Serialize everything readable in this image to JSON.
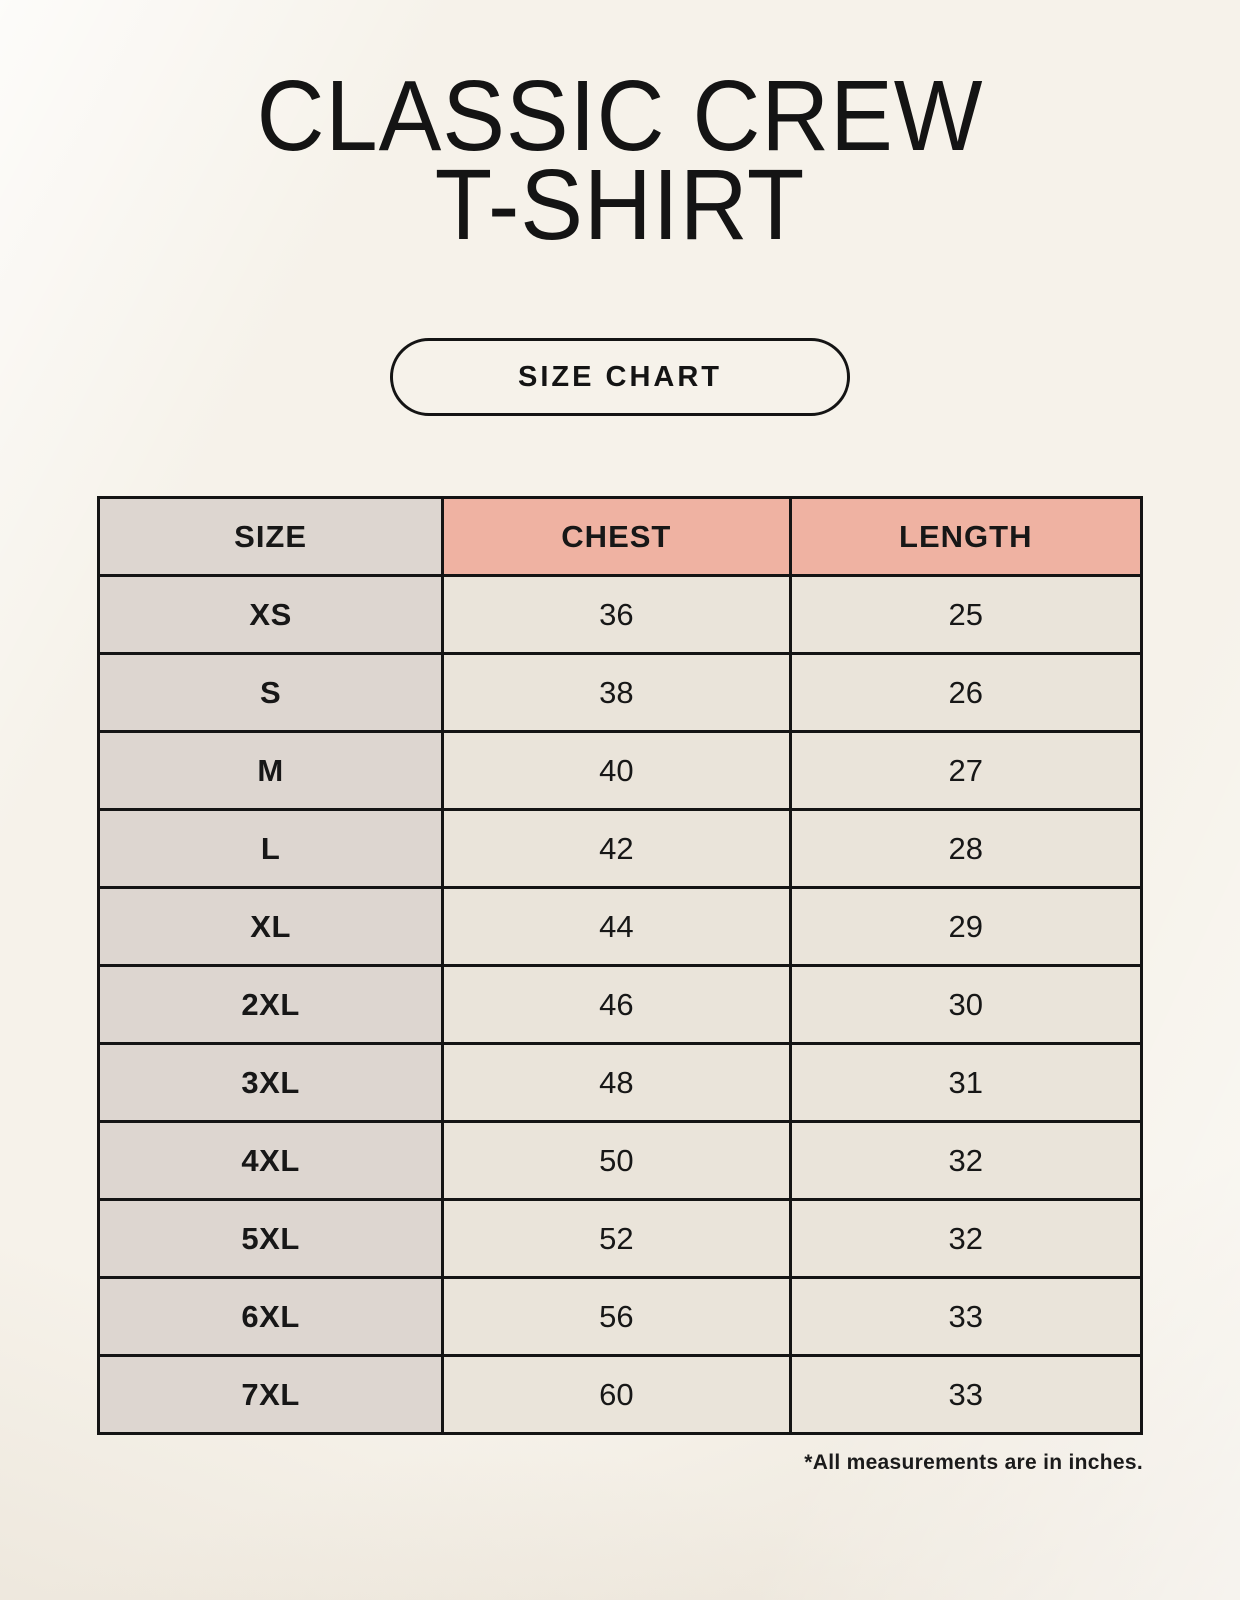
{
  "header": {
    "title_line1": "CLASSIC CREW",
    "title_line2": "T-SHIRT"
  },
  "button": {
    "label": "SIZE CHART"
  },
  "chart_data": {
    "type": "table",
    "title": "SIZE CHART",
    "columns": [
      "SIZE",
      "CHEST",
      "LENGTH"
    ],
    "rows": [
      [
        "XS",
        "36",
        "25"
      ],
      [
        "S",
        "38",
        "26"
      ],
      [
        "M",
        "40",
        "27"
      ],
      [
        "L",
        "42",
        "28"
      ],
      [
        "XL",
        "44",
        "29"
      ],
      [
        "2XL",
        "46",
        "30"
      ],
      [
        "3XL",
        "48",
        "31"
      ],
      [
        "4XL",
        "50",
        "32"
      ],
      [
        "5XL",
        "52",
        "32"
      ],
      [
        "6XL",
        "56",
        "33"
      ],
      [
        "7XL",
        "60",
        "33"
      ]
    ],
    "units_note": "*All measurements are in inches."
  },
  "footnote": "*All measurements are in inches.",
  "colors": {
    "background": "#f6f2ea",
    "header_pink": "#efb2a2",
    "size_column_gray": "#ddd6d0",
    "value_cell_cream": "#eae4da",
    "border_black": "#141414",
    "text_black": "#171717"
  }
}
